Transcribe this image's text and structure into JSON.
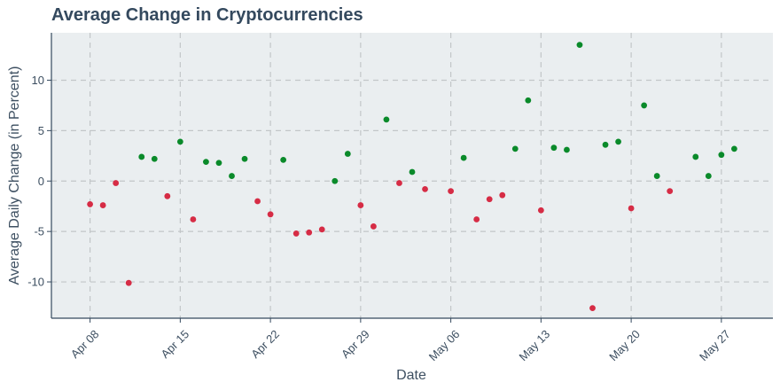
{
  "chart_data": {
    "type": "scatter",
    "title": "Average Change in Cryptocurrencies",
    "xlabel": "Date",
    "ylabel": "Average Daily Change (in Percent)",
    "x_tick_labels": [
      "Apr 08",
      "Apr 15",
      "Apr 22",
      "Apr 29",
      "May 06",
      "May 13",
      "May 20",
      "May 27"
    ],
    "y_ticks": [
      -10,
      -5,
      0,
      5,
      10
    ],
    "xlim": [
      "2024-04-05",
      "2024-05-31"
    ],
    "ylim": [
      -13.6,
      14.7
    ],
    "grid": true,
    "colors": {
      "positive": "#0a8a2a",
      "negative": "#d62c45",
      "plot_bg": "#eaeef0",
      "text": "#34495e"
    },
    "x": [
      "2024-04-08",
      "2024-04-09",
      "2024-04-10",
      "2024-04-11",
      "2024-04-12",
      "2024-04-13",
      "2024-04-14",
      "2024-04-15",
      "2024-04-16",
      "2024-04-17",
      "2024-04-18",
      "2024-04-19",
      "2024-04-20",
      "2024-04-21",
      "2024-04-22",
      "2024-04-23",
      "2024-04-24",
      "2024-04-25",
      "2024-04-26",
      "2024-04-27",
      "2024-04-28",
      "2024-04-29",
      "2024-04-30",
      "2024-05-01",
      "2024-05-02",
      "2024-05-03",
      "2024-05-04",
      "2024-05-06",
      "2024-05-07",
      "2024-05-08",
      "2024-05-09",
      "2024-05-10",
      "2024-05-11",
      "2024-05-12",
      "2024-05-13",
      "2024-05-14",
      "2024-05-15",
      "2024-05-16",
      "2024-05-17",
      "2024-05-18",
      "2024-05-19",
      "2024-05-20",
      "2024-05-21",
      "2024-05-22",
      "2024-05-23",
      "2024-05-25",
      "2024-05-26",
      "2024-05-27",
      "2024-05-28"
    ],
    "y": [
      -2.3,
      -2.4,
      -0.2,
      -10.1,
      2.4,
      2.2,
      -1.5,
      3.9,
      -3.8,
      1.9,
      1.8,
      0.5,
      2.2,
      -2.0,
      -3.3,
      2.1,
      -5.2,
      -5.1,
      -4.8,
      0.0,
      2.7,
      -2.4,
      -4.5,
      6.1,
      -0.2,
      0.9,
      -0.8,
      -1.0,
      2.3,
      -3.8,
      -1.8,
      -1.4,
      3.2,
      8.0,
      -2.9,
      3.3,
      3.1,
      13.5,
      -12.6,
      3.6,
      3.9,
      -2.7,
      7.5,
      0.5,
      -1.0,
      2.4,
      0.5,
      2.6,
      3.2
    ]
  }
}
